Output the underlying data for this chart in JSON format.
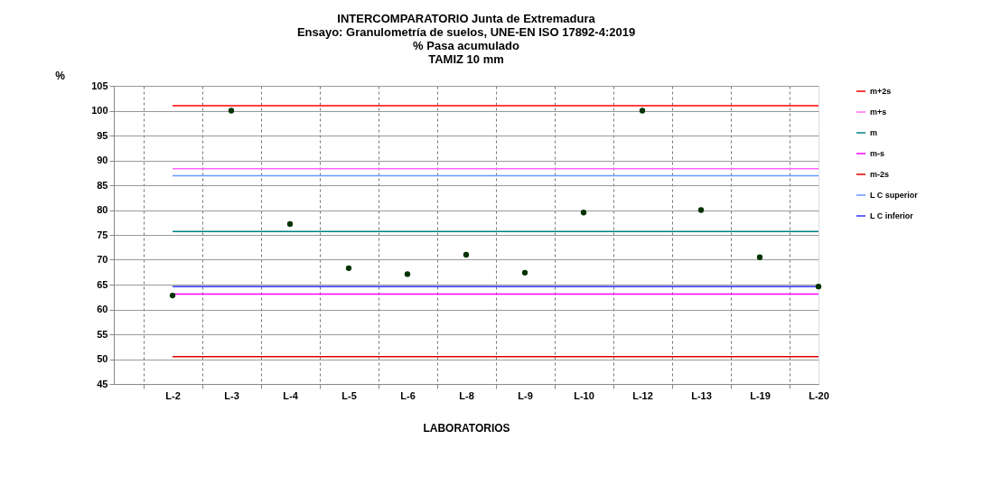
{
  "chart_data": {
    "type": "scatter",
    "title": "INTERCOMPARATORIO Junta de Extremadura\nEnsayo: Granulometría de suelos, UNE-EN ISO 17892-4:2019\n% Pasa acumulado\nTAMIZ 10 mm",
    "xlabel": "LABORATORIOS",
    "ylabel": "%",
    "categories": [
      "L-2",
      "L-3",
      "L-4",
      "L-5",
      "L-6",
      "L-8",
      "L-9",
      "L-10",
      "L-12",
      "L-13",
      "L-19",
      "L-20"
    ],
    "series": [
      {
        "type": "scatter",
        "marker": "circle",
        "color": "#003300",
        "values": [
          62.8,
          100,
          77.2,
          68.3,
          67.1,
          71.0,
          67.4,
          79.5,
          100,
          80.0,
          70.5,
          64.6
        ]
      },
      {
        "type": "line",
        "name": "m+2s",
        "color": "#ff0000",
        "values": [
          101.0,
          101.0,
          101.0,
          101.0,
          101.0,
          101.0,
          101.0,
          101.0,
          101.0,
          101.0,
          101.0,
          101.0
        ]
      },
      {
        "type": "line",
        "name": "m+s",
        "color": "#ff66ff",
        "values": [
          88.3,
          88.3,
          88.3,
          88.3,
          88.3,
          88.3,
          88.3,
          88.3,
          88.3,
          88.3,
          88.3,
          88.3
        ]
      },
      {
        "type": "line",
        "name": "m",
        "color": "#008080",
        "values": [
          75.7,
          75.7,
          75.7,
          75.7,
          75.7,
          75.7,
          75.7,
          75.7,
          75.7,
          75.7,
          75.7,
          75.7
        ]
      },
      {
        "type": "line",
        "name": "m-s",
        "color": "#ff00ff",
        "values": [
          63.1,
          63.1,
          63.1,
          63.1,
          63.1,
          63.1,
          63.1,
          63.1,
          63.1,
          63.1,
          63.1,
          63.1
        ]
      },
      {
        "type": "line",
        "name": "m-2s",
        "color": "#dd0000",
        "values": [
          50.5,
          50.5,
          50.5,
          50.5,
          50.5,
          50.5,
          50.5,
          50.5,
          50.5,
          50.5,
          50.5,
          50.5
        ]
      },
      {
        "type": "line",
        "name": "L C superior",
        "color": "#6699ff",
        "values": [
          86.9,
          86.9,
          86.9,
          86.9,
          86.9,
          86.9,
          86.9,
          86.9,
          86.9,
          86.9,
          86.9,
          86.9
        ]
      },
      {
        "type": "line",
        "name": "L C inferior",
        "color": "#3333ff",
        "values": [
          64.6,
          64.6,
          64.6,
          64.6,
          64.6,
          64.6,
          64.6,
          64.6,
          64.6,
          64.6,
          64.6,
          64.6
        ]
      }
    ],
    "ylim": [
      45,
      105
    ],
    "yticks": [
      45,
      50,
      55,
      60,
      65,
      70,
      75,
      80,
      85,
      90,
      95,
      100,
      105
    ],
    "grid": true,
    "legend": "right",
    "line_style": "solid"
  }
}
